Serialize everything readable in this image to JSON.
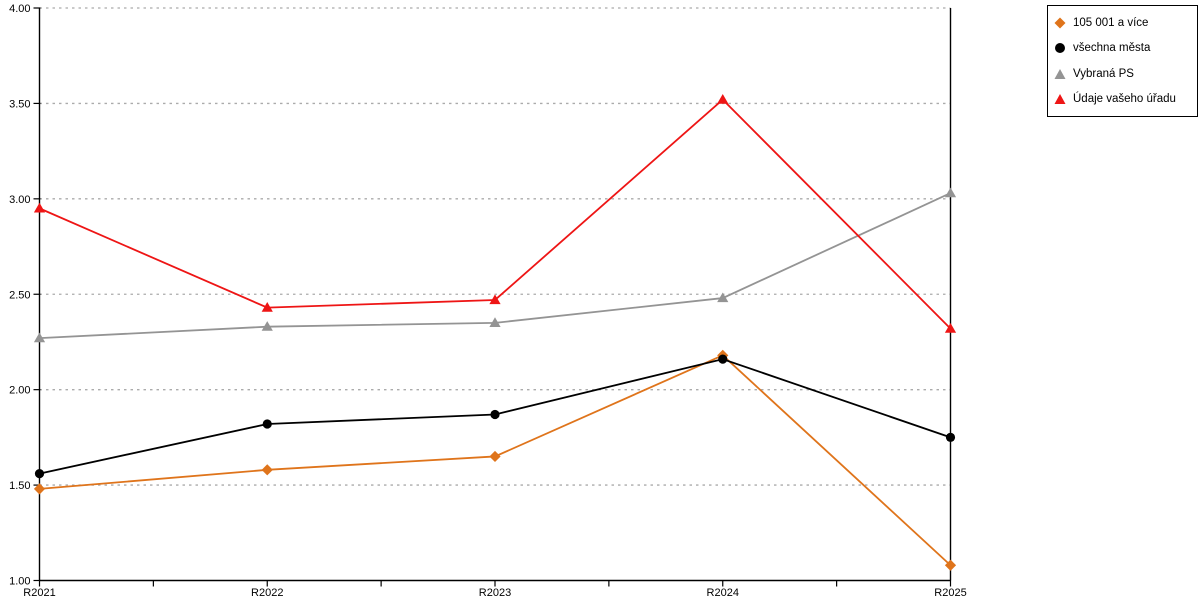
{
  "chart_data": {
    "type": "line",
    "title": "",
    "xlabel": "",
    "ylabel": "",
    "categories": [
      "R2021",
      "R2022",
      "R2023",
      "R2024",
      "R2025"
    ],
    "series": [
      {
        "name": "105 001 a více",
        "color": "#DF741B",
        "marker": "diamond",
        "values": [
          1.48,
          1.58,
          1.65,
          2.18,
          1.08
        ]
      },
      {
        "name": "všechna města",
        "color": "#000000",
        "marker": "circle",
        "values": [
          1.56,
          1.82,
          1.87,
          2.16,
          1.75
        ]
      },
      {
        "name": "Vybraná PS",
        "color": "#949494",
        "marker": "triangle",
        "values": [
          2.27,
          2.33,
          2.35,
          2.48,
          3.03
        ]
      },
      {
        "name": "Údaje vašeho úřadu",
        "color": "#EE1515",
        "marker": "triangle",
        "values": [
          2.95,
          2.43,
          2.47,
          3.52,
          2.32
        ]
      }
    ],
    "ylim": [
      1.0,
      4.0
    ],
    "ytick_step": 0.5,
    "ytick_labels": [
      "4.00",
      "3.50",
      "3.00",
      "2.50",
      "2.00",
      "1.50",
      "1.00"
    ],
    "grid": "horizontal-dotted",
    "grid_color": "#ABABAB",
    "axis_color": "#000000",
    "minor_xticks_between_categories": true,
    "legend_position": "top-right"
  }
}
